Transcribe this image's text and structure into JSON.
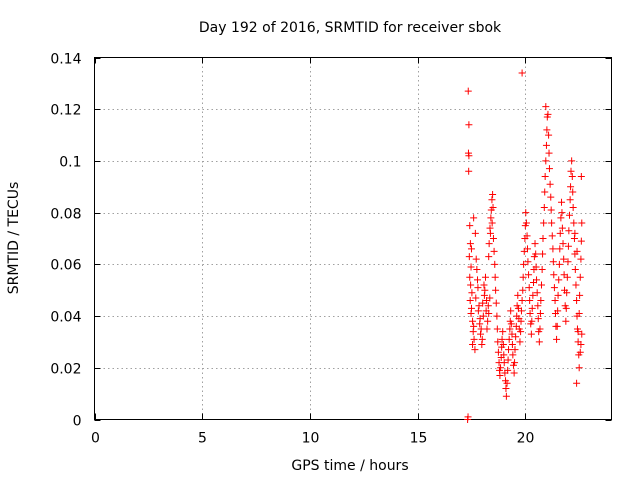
{
  "chart_data": {
    "type": "scatter",
    "title": "Day 192 of 2016, SRMTID for receiver sbok",
    "xlabel": "GPS time / hours",
    "ylabel": "SRMTID / TECUs",
    "xlim": [
      0,
      24
    ],
    "ylim": [
      0,
      0.14
    ],
    "grid": true,
    "marker": "+",
    "marker_color": "#ff0000",
    "x_ticks": [
      0,
      5,
      10,
      15,
      20
    ],
    "x_tick_labels": [
      "0",
      "5",
      "10",
      "15",
      "20"
    ],
    "y_ticks": [
      0,
      0.02,
      0.04,
      0.06,
      0.08,
      0.1,
      0.12,
      0.14
    ],
    "y_tick_labels": [
      "0",
      "0.02",
      "0.04",
      "0.06",
      "0.08",
      "0.1",
      "0.12",
      "0.14"
    ],
    "series": [
      {
        "name": "SRMTID",
        "points": [
          [
            17.32,
            0.0
          ],
          [
            17.34,
            0.001
          ],
          [
            17.35,
            0.127
          ],
          [
            17.38,
            0.114
          ],
          [
            17.36,
            0.103
          ],
          [
            17.38,
            0.102
          ],
          [
            17.37,
            0.096
          ],
          [
            17.42,
            0.075
          ],
          [
            17.45,
            0.068
          ],
          [
            17.4,
            0.063
          ],
          [
            17.48,
            0.059
          ],
          [
            17.42,
            0.055
          ],
          [
            17.46,
            0.052
          ],
          [
            17.52,
            0.049
          ],
          [
            17.44,
            0.046
          ],
          [
            17.5,
            0.043
          ],
          [
            17.48,
            0.041
          ],
          [
            17.55,
            0.038
          ],
          [
            17.6,
            0.036
          ],
          [
            17.58,
            0.034
          ],
          [
            17.62,
            0.031
          ],
          [
            17.55,
            0.029
          ],
          [
            17.66,
            0.027
          ],
          [
            17.6,
            0.078
          ],
          [
            17.68,
            0.072
          ],
          [
            17.5,
            0.066
          ],
          [
            17.72,
            0.062
          ],
          [
            17.75,
            0.058
          ],
          [
            17.78,
            0.054
          ],
          [
            17.8,
            0.051
          ],
          [
            17.7,
            0.047
          ],
          [
            17.85,
            0.044
          ],
          [
            17.82,
            0.042
          ],
          [
            17.9,
            0.039
          ],
          [
            17.88,
            0.037
          ],
          [
            17.95,
            0.035
          ],
          [
            17.92,
            0.033
          ],
          [
            18.0,
            0.031
          ],
          [
            17.98,
            0.029
          ],
          [
            18.05,
            0.04
          ],
          [
            18.02,
            0.045
          ],
          [
            18.1,
            0.048
          ],
          [
            18.08,
            0.052
          ],
          [
            18.15,
            0.055
          ],
          [
            18.12,
            0.05
          ],
          [
            18.2,
            0.046
          ],
          [
            18.18,
            0.042
          ],
          [
            18.25,
            0.038
          ],
          [
            18.22,
            0.035
          ],
          [
            18.3,
            0.041
          ],
          [
            18.28,
            0.044
          ],
          [
            18.35,
            0.047
          ],
          [
            18.3,
            0.063
          ],
          [
            18.32,
            0.068
          ],
          [
            18.38,
            0.072
          ],
          [
            18.36,
            0.074
          ],
          [
            18.4,
            0.078
          ],
          [
            18.42,
            0.081
          ],
          [
            18.45,
            0.085
          ],
          [
            18.48,
            0.087
          ],
          [
            18.5,
            0.082
          ],
          [
            18.46,
            0.076
          ],
          [
            18.52,
            0.07
          ],
          [
            18.55,
            0.065
          ],
          [
            18.58,
            0.06
          ],
          [
            18.6,
            0.055
          ],
          [
            18.62,
            0.05
          ],
          [
            18.65,
            0.045
          ],
          [
            18.68,
            0.04
          ],
          [
            18.7,
            0.035
          ],
          [
            18.72,
            0.03
          ],
          [
            18.75,
            0.026
          ],
          [
            18.78,
            0.022
          ],
          [
            18.8,
            0.019
          ],
          [
            18.82,
            0.017
          ],
          [
            18.85,
            0.02
          ],
          [
            18.88,
            0.024
          ],
          [
            18.9,
            0.028
          ],
          [
            18.92,
            0.031
          ],
          [
            18.95,
            0.034
          ],
          [
            18.98,
            0.029
          ],
          [
            19.0,
            0.025
          ],
          [
            19.02,
            0.022
          ],
          [
            19.05,
            0.018
          ],
          [
            19.08,
            0.015
          ],
          [
            19.1,
            0.012
          ],
          [
            19.12,
            0.009
          ],
          [
            19.15,
            0.014
          ],
          [
            19.18,
            0.019
          ],
          [
            19.2,
            0.023
          ],
          [
            19.22,
            0.027
          ],
          [
            19.25,
            0.031
          ],
          [
            19.28,
            0.035
          ],
          [
            19.3,
            0.038
          ],
          [
            19.32,
            0.042
          ],
          [
            19.35,
            0.037
          ],
          [
            19.38,
            0.033
          ],
          [
            19.4,
            0.029
          ],
          [
            19.42,
            0.025
          ],
          [
            19.45,
            0.021
          ],
          [
            19.48,
            0.018
          ],
          [
            19.5,
            0.022
          ],
          [
            19.52,
            0.027
          ],
          [
            19.55,
            0.032
          ],
          [
            19.58,
            0.036
          ],
          [
            19.6,
            0.04
          ],
          [
            19.62,
            0.044
          ],
          [
            19.65,
            0.048
          ],
          [
            19.68,
            0.043
          ],
          [
            19.7,
            0.039
          ],
          [
            19.72,
            0.035
          ],
          [
            19.75,
            0.03
          ],
          [
            19.78,
            0.034
          ],
          [
            19.8,
            0.038
          ],
          [
            19.82,
            0.042
          ],
          [
            19.85,
            0.046
          ],
          [
            19.88,
            0.05
          ],
          [
            19.9,
            0.055
          ],
          [
            19.92,
            0.06
          ],
          [
            19.95,
            0.065
          ],
          [
            19.98,
            0.07
          ],
          [
            20.0,
            0.075
          ],
          [
            20.02,
            0.08
          ],
          [
            19.85,
            0.134
          ],
          [
            20.05,
            0.076
          ],
          [
            20.08,
            0.071
          ],
          [
            20.1,
            0.066
          ],
          [
            20.12,
            0.061
          ],
          [
            20.15,
            0.056
          ],
          [
            20.18,
            0.051
          ],
          [
            20.2,
            0.046
          ],
          [
            20.22,
            0.041
          ],
          [
            20.25,
            0.037
          ],
          [
            20.28,
            0.033
          ],
          [
            20.3,
            0.038
          ],
          [
            20.32,
            0.043
          ],
          [
            20.35,
            0.048
          ],
          [
            20.38,
            0.053
          ],
          [
            20.4,
            0.058
          ],
          [
            20.42,
            0.063
          ],
          [
            20.45,
            0.068
          ],
          [
            20.48,
            0.064
          ],
          [
            20.5,
            0.059
          ],
          [
            20.52,
            0.054
          ],
          [
            20.55,
            0.049
          ],
          [
            20.58,
            0.044
          ],
          [
            20.6,
            0.039
          ],
          [
            20.62,
            0.034
          ],
          [
            20.65,
            0.03
          ],
          [
            20.68,
            0.035
          ],
          [
            20.7,
            0.041
          ],
          [
            20.72,
            0.046
          ],
          [
            20.75,
            0.052
          ],
          [
            20.78,
            0.058
          ],
          [
            20.8,
            0.064
          ],
          [
            20.82,
            0.07
          ],
          [
            20.85,
            0.076
          ],
          [
            20.88,
            0.082
          ],
          [
            20.9,
            0.088
          ],
          [
            20.92,
            0.094
          ],
          [
            20.95,
            0.1
          ],
          [
            20.98,
            0.106
          ],
          [
            21.0,
            0.112
          ],
          [
            21.02,
            0.117
          ],
          [
            21.05,
            0.118
          ],
          [
            21.08,
            0.11
          ],
          [
            21.1,
            0.103
          ],
          [
            21.12,
            0.097
          ],
          [
            20.95,
            0.121
          ],
          [
            21.15,
            0.091
          ],
          [
            21.18,
            0.086
          ],
          [
            21.2,
            0.081
          ],
          [
            21.22,
            0.076
          ],
          [
            21.25,
            0.071
          ],
          [
            21.28,
            0.066
          ],
          [
            21.3,
            0.061
          ],
          [
            21.32,
            0.056
          ],
          [
            21.35,
            0.051
          ],
          [
            21.38,
            0.046
          ],
          [
            21.4,
            0.041
          ],
          [
            21.42,
            0.036
          ],
          [
            21.45,
            0.031
          ],
          [
            21.48,
            0.036
          ],
          [
            21.5,
            0.042
          ],
          [
            21.52,
            0.048
          ],
          [
            21.55,
            0.054
          ],
          [
            21.58,
            0.06
          ],
          [
            21.6,
            0.066
          ],
          [
            21.62,
            0.072
          ],
          [
            21.65,
            0.078
          ],
          [
            21.68,
            0.084
          ],
          [
            21.7,
            0.08
          ],
          [
            21.72,
            0.074
          ],
          [
            21.75,
            0.068
          ],
          [
            21.78,
            0.062
          ],
          [
            21.8,
            0.056
          ],
          [
            21.82,
            0.05
          ],
          [
            21.85,
            0.044
          ],
          [
            21.88,
            0.038
          ],
          [
            21.9,
            0.043
          ],
          [
            21.92,
            0.049
          ],
          [
            21.95,
            0.055
          ],
          [
            21.98,
            0.061
          ],
          [
            22.0,
            0.067
          ],
          [
            22.02,
            0.073
          ],
          [
            22.05,
            0.079
          ],
          [
            22.08,
            0.085
          ],
          [
            22.1,
            0.09
          ],
          [
            22.12,
            0.096
          ],
          [
            22.15,
            0.1
          ],
          [
            22.18,
            0.094
          ],
          [
            22.2,
            0.088
          ],
          [
            22.22,
            0.082
          ],
          [
            22.25,
            0.076
          ],
          [
            22.28,
            0.07
          ],
          [
            22.3,
            0.064
          ],
          [
            22.32,
            0.058
          ],
          [
            22.35,
            0.052
          ],
          [
            22.38,
            0.046
          ],
          [
            22.4,
            0.04
          ],
          [
            22.42,
            0.035
          ],
          [
            22.45,
            0.03
          ],
          [
            22.48,
            0.025
          ],
          [
            22.5,
            0.02
          ],
          [
            22.38,
            0.014
          ],
          [
            22.45,
            0.034
          ],
          [
            22.5,
            0.041
          ],
          [
            22.52,
            0.048
          ],
          [
            22.55,
            0.055
          ],
          [
            22.58,
            0.062
          ],
          [
            22.6,
            0.069
          ],
          [
            22.62,
            0.076
          ],
          [
            22.6,
            0.094
          ],
          [
            22.62,
            0.033
          ],
          [
            22.58,
            0.029
          ],
          [
            22.55,
            0.026
          ],
          [
            22.4,
            0.065
          ],
          [
            22.3,
            0.072
          ]
        ]
      }
    ]
  }
}
